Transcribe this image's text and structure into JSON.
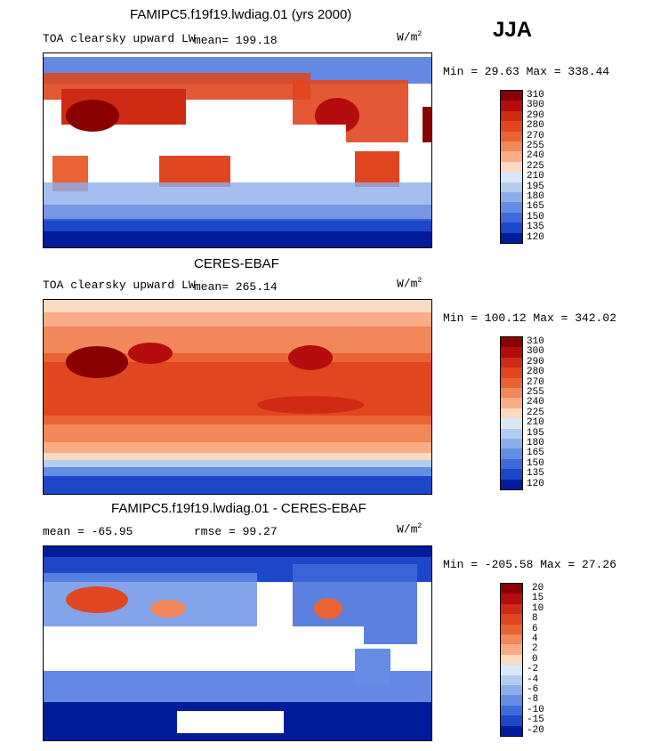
{
  "season": "JJA",
  "chart_data": [
    {
      "type": "heatmap",
      "panel": "model",
      "title": "FAMIPC5.f19f19.lwdiag.01 (yrs 2000)",
      "variable": "TOA clearsky upward LW",
      "mean_text": "mean=  199.18",
      "units_base": "W/m",
      "units_exp": "2",
      "min_max_text": "Min =  29.63 Max = 338.44",
      "colorbar_labels": [
        "310",
        "300",
        "290",
        "280",
        "270",
        "255",
        "240",
        "225",
        "210",
        "195",
        "180",
        "165",
        "150",
        "135",
        "120"
      ],
      "colorbar_colors": [
        "#880000",
        "#b50d0d",
        "#cf2a14",
        "#e0461f",
        "#ea6334",
        "#f2875a",
        "#f8ad87",
        "#fcd9c3",
        "#dbe6f7",
        "#b5ccf1",
        "#8eaeeb",
        "#658de3",
        "#3f6adb",
        "#1d47c9",
        "#001c9a"
      ]
    },
    {
      "type": "heatmap",
      "panel": "obs",
      "title": "CERES-EBAF",
      "variable": "TOA clearsky upward LW",
      "mean_text": "mean=  265.14",
      "units_base": "W/m",
      "units_exp": "2",
      "min_max_text": "Min = 100.12 Max = 342.02",
      "colorbar_labels": [
        "310",
        "300",
        "290",
        "280",
        "270",
        "255",
        "240",
        "225",
        "210",
        "195",
        "180",
        "165",
        "150",
        "135",
        "120"
      ],
      "colorbar_colors": [
        "#880000",
        "#b50d0d",
        "#cf2a14",
        "#e0461f",
        "#ea6334",
        "#f2875a",
        "#f8ad87",
        "#fcd9c3",
        "#dbe6f7",
        "#b5ccf1",
        "#8eaeeb",
        "#658de3",
        "#3f6adb",
        "#1d47c9",
        "#001c9a"
      ]
    },
    {
      "type": "heatmap",
      "panel": "difference",
      "title": "FAMIPC5.f19f19.lwdiag.01 - CERES-EBAF",
      "mean_text": "mean =  -65.95",
      "rmse_text": "rmse =   99.27",
      "units_base": "W/m",
      "units_exp": "2",
      "min_max_text": "Min = -205.58 Max =  27.26",
      "colorbar_labels": [
        "20",
        "15",
        "10",
        "8",
        "6",
        "4",
        "2",
        "0",
        "-2",
        "-4",
        "-6",
        "-8",
        "-10",
        "-15",
        "-20"
      ],
      "colorbar_colors": [
        "#880000",
        "#b50d0d",
        "#cf2a14",
        "#e0461f",
        "#ea6334",
        "#f2875a",
        "#f8ad87",
        "#fcd9c3",
        "#dbe6f7",
        "#b5ccf1",
        "#8eaeeb",
        "#658de3",
        "#3f6adb",
        "#1d47c9",
        "#001c9a"
      ]
    }
  ]
}
